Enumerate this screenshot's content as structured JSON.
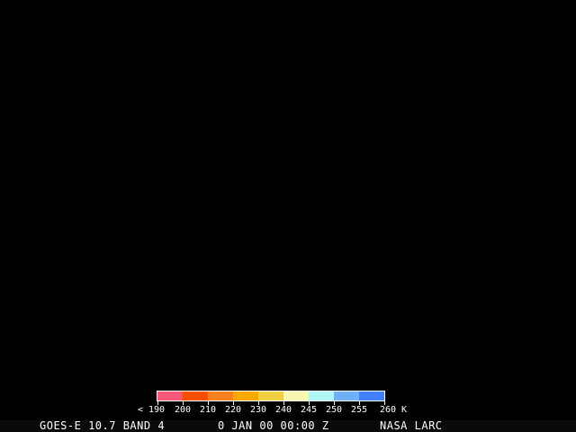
{
  "colorbar": {
    "colors": [
      "#f85878",
      "#f85000",
      "#f88020",
      "#f8a800",
      "#f0d040",
      "#f8f8b0",
      "#b0f8f8",
      "#70b0f8",
      "#4080f8"
    ],
    "labels": [
      "< 190",
      "200",
      "210",
      "220",
      "230",
      "240",
      "245",
      "250",
      "255",
      "260 K"
    ]
  },
  "status": {
    "satellite": "GOES-E 10.7 BAND 4",
    "datetime": "0 JAN 00 00:00 Z",
    "credit": "NASA LARC"
  }
}
